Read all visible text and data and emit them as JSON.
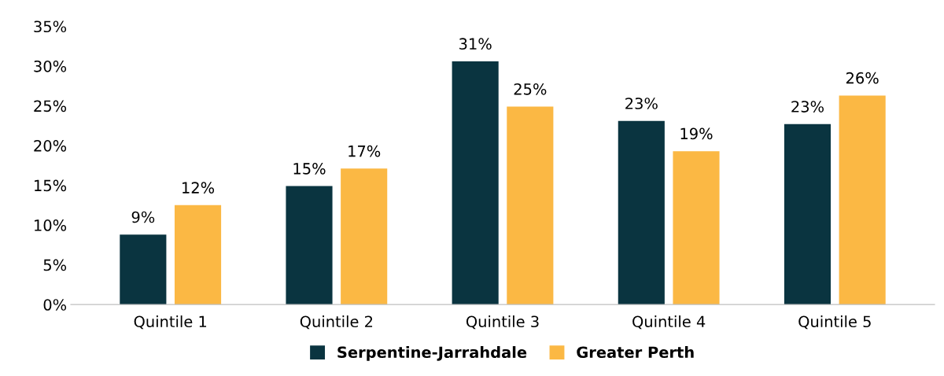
{
  "chart_data": {
    "type": "bar",
    "categories": [
      "Quintile 1",
      "Quintile 2",
      "Quintile 3",
      "Quintile 4",
      "Quintile 5"
    ],
    "series": [
      {
        "name": "Serpentine-Jarrahdale",
        "color": "#0a3440",
        "values": [
          8.8,
          14.9,
          30.6,
          23.1,
          22.7
        ],
        "value_labels": [
          "9%",
          "15%",
          "31%",
          "23%",
          "23%"
        ]
      },
      {
        "name": "Greater Perth",
        "color": "#fbb844",
        "values": [
          12.5,
          17.1,
          24.9,
          19.3,
          26.3
        ],
        "value_labels": [
          "12%",
          "17%",
          "25%",
          "19%",
          "26%"
        ]
      }
    ],
    "ylim": [
      0,
      35
    ],
    "yticks": [
      {
        "value": 0,
        "label": "0%"
      },
      {
        "value": 5,
        "label": "5%"
      },
      {
        "value": 10,
        "label": "10%"
      },
      {
        "value": 15,
        "label": "15%"
      },
      {
        "value": 20,
        "label": "20%"
      },
      {
        "value": 25,
        "label": "25%"
      },
      {
        "value": 30,
        "label": "30%"
      },
      {
        "value": 35,
        "label": "35%"
      }
    ],
    "grid": false,
    "legend": "bottom"
  }
}
